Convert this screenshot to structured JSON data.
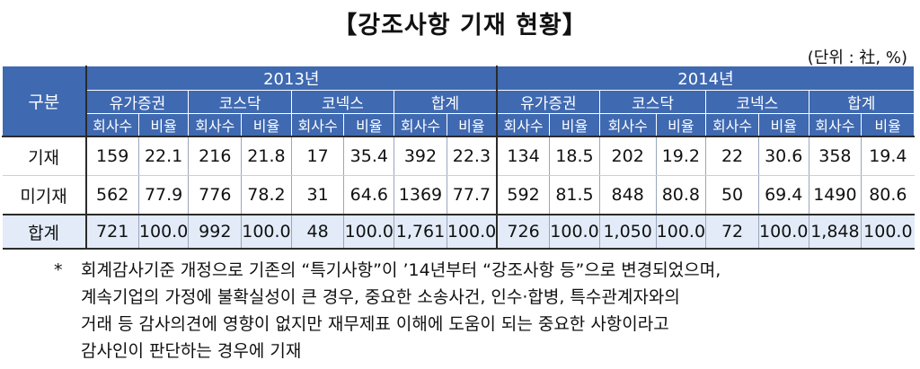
{
  "title": "【강조사항 기재 현황】",
  "unit": "(단위 : 社, %)",
  "table": {
    "corner_label": "구분",
    "years": [
      "2013년",
      "2014년"
    ],
    "markets": [
      "유가증권",
      "코스닥",
      "코넥스",
      "합계"
    ],
    "sub_headers": [
      "회사수",
      "비율"
    ],
    "rows": [
      {
        "label": "기재",
        "cells": [
          "159",
          "22.1",
          "216",
          "21.8",
          "17",
          "35.4",
          "392",
          "22.3",
          "134",
          "18.5",
          "202",
          "19.2",
          "22",
          "30.6",
          "358",
          "19.4"
        ]
      },
      {
        "label": "미기재",
        "cells": [
          "562",
          "77.9",
          "776",
          "78.2",
          "31",
          "64.6",
          "1369",
          "77.7",
          "592",
          "81.5",
          "848",
          "80.8",
          "50",
          "69.4",
          "1490",
          "80.6"
        ]
      },
      {
        "label": "합계",
        "cells": [
          "721",
          "100.0",
          "992",
          "100.0",
          "48",
          "100.0",
          "1,761",
          "100.0",
          "726",
          "100.0",
          "1,050",
          "100.0",
          "72",
          "100.0",
          "1,848",
          "100.0"
        ]
      }
    ]
  },
  "notes": {
    "mark": "*",
    "lines": [
      "회계감사기준 개정으로 기존의 “특기사항”이 ’14년부터 “강조사항 등”으로 변경되었으며,",
      "계속기업의 가정에 불확실성이 큰 경우, 중요한 소송사건, 인수·합병, 특수관계자와의",
      "거래 등 감사의견에 영향이 없지만 재무제표 이해에 도움이 되는 중요한 사항이라고",
      "감사인이 판단하는 경우에 기재"
    ]
  },
  "colors": {
    "header_bg": "#3f69b1",
    "header_text": "#ffffff",
    "total_row_bg": "#e2ebf7"
  }
}
